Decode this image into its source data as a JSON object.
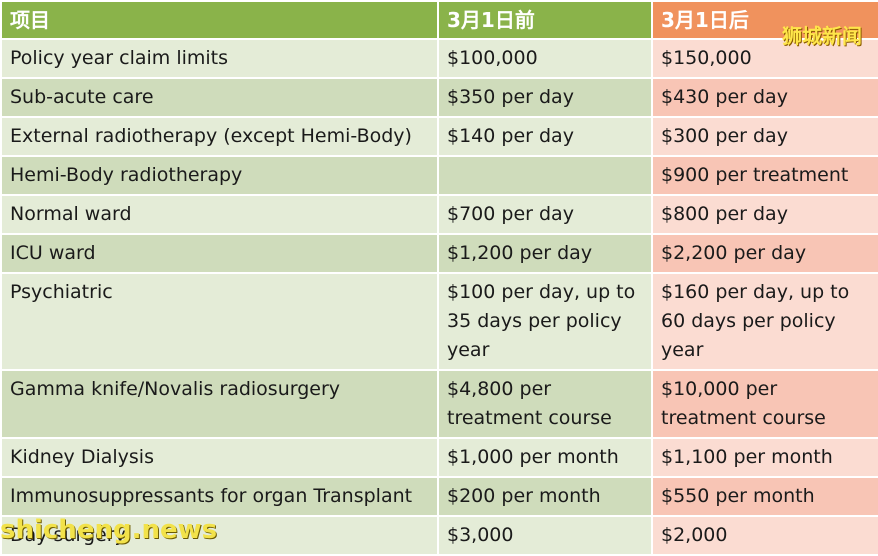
{
  "table": {
    "headers": [
      "项目",
      "3月1日前",
      "3月1日后"
    ],
    "rows": [
      [
        "Policy year claim limits",
        "$100,000",
        "$150,000"
      ],
      [
        "Sub-acute care",
        "$350 per day",
        "$430 per day"
      ],
      [
        "External radiotherapy (except Hemi-Body)",
        "$140 per day",
        "$300 per day"
      ],
      [
        "Hemi-Body radiotherapy",
        "",
        "$900 per treatment"
      ],
      [
        "Normal ward",
        "$700 per day",
        "$800 per day"
      ],
      [
        "ICU ward",
        "$1,200 per day",
        "$2,200 per day"
      ],
      [
        "Psychiatric",
        "$100 per day, up to 35 days per policy year",
        "$160 per day, up to 60 days per policy year"
      ],
      [
        "Gamma knife/Novalis radiosurgery",
        "$4,800 per treatment course",
        "$10,000 per treatment course"
      ],
      [
        "Kidney Dialysis",
        "$1,000 per month",
        "$1,100 per month"
      ],
      [
        "Immunosuppressants for organ Transplant",
        "$200 per month",
        "$550 per month"
      ],
      [
        "Day surgery",
        "$3,000",
        "$2,000"
      ]
    ]
  },
  "watermarks": {
    "top": "狮城新闻",
    "bottom": "shicheng.news"
  },
  "colors": {
    "header_green": "#8ab34a",
    "header_orange": "#f0925d",
    "row_green_light": "#e4ecd7",
    "row_green_dark": "#cfdcbb",
    "row_peach_light": "#fbdcd2",
    "row_peach_dark": "#f8c5b5"
  }
}
